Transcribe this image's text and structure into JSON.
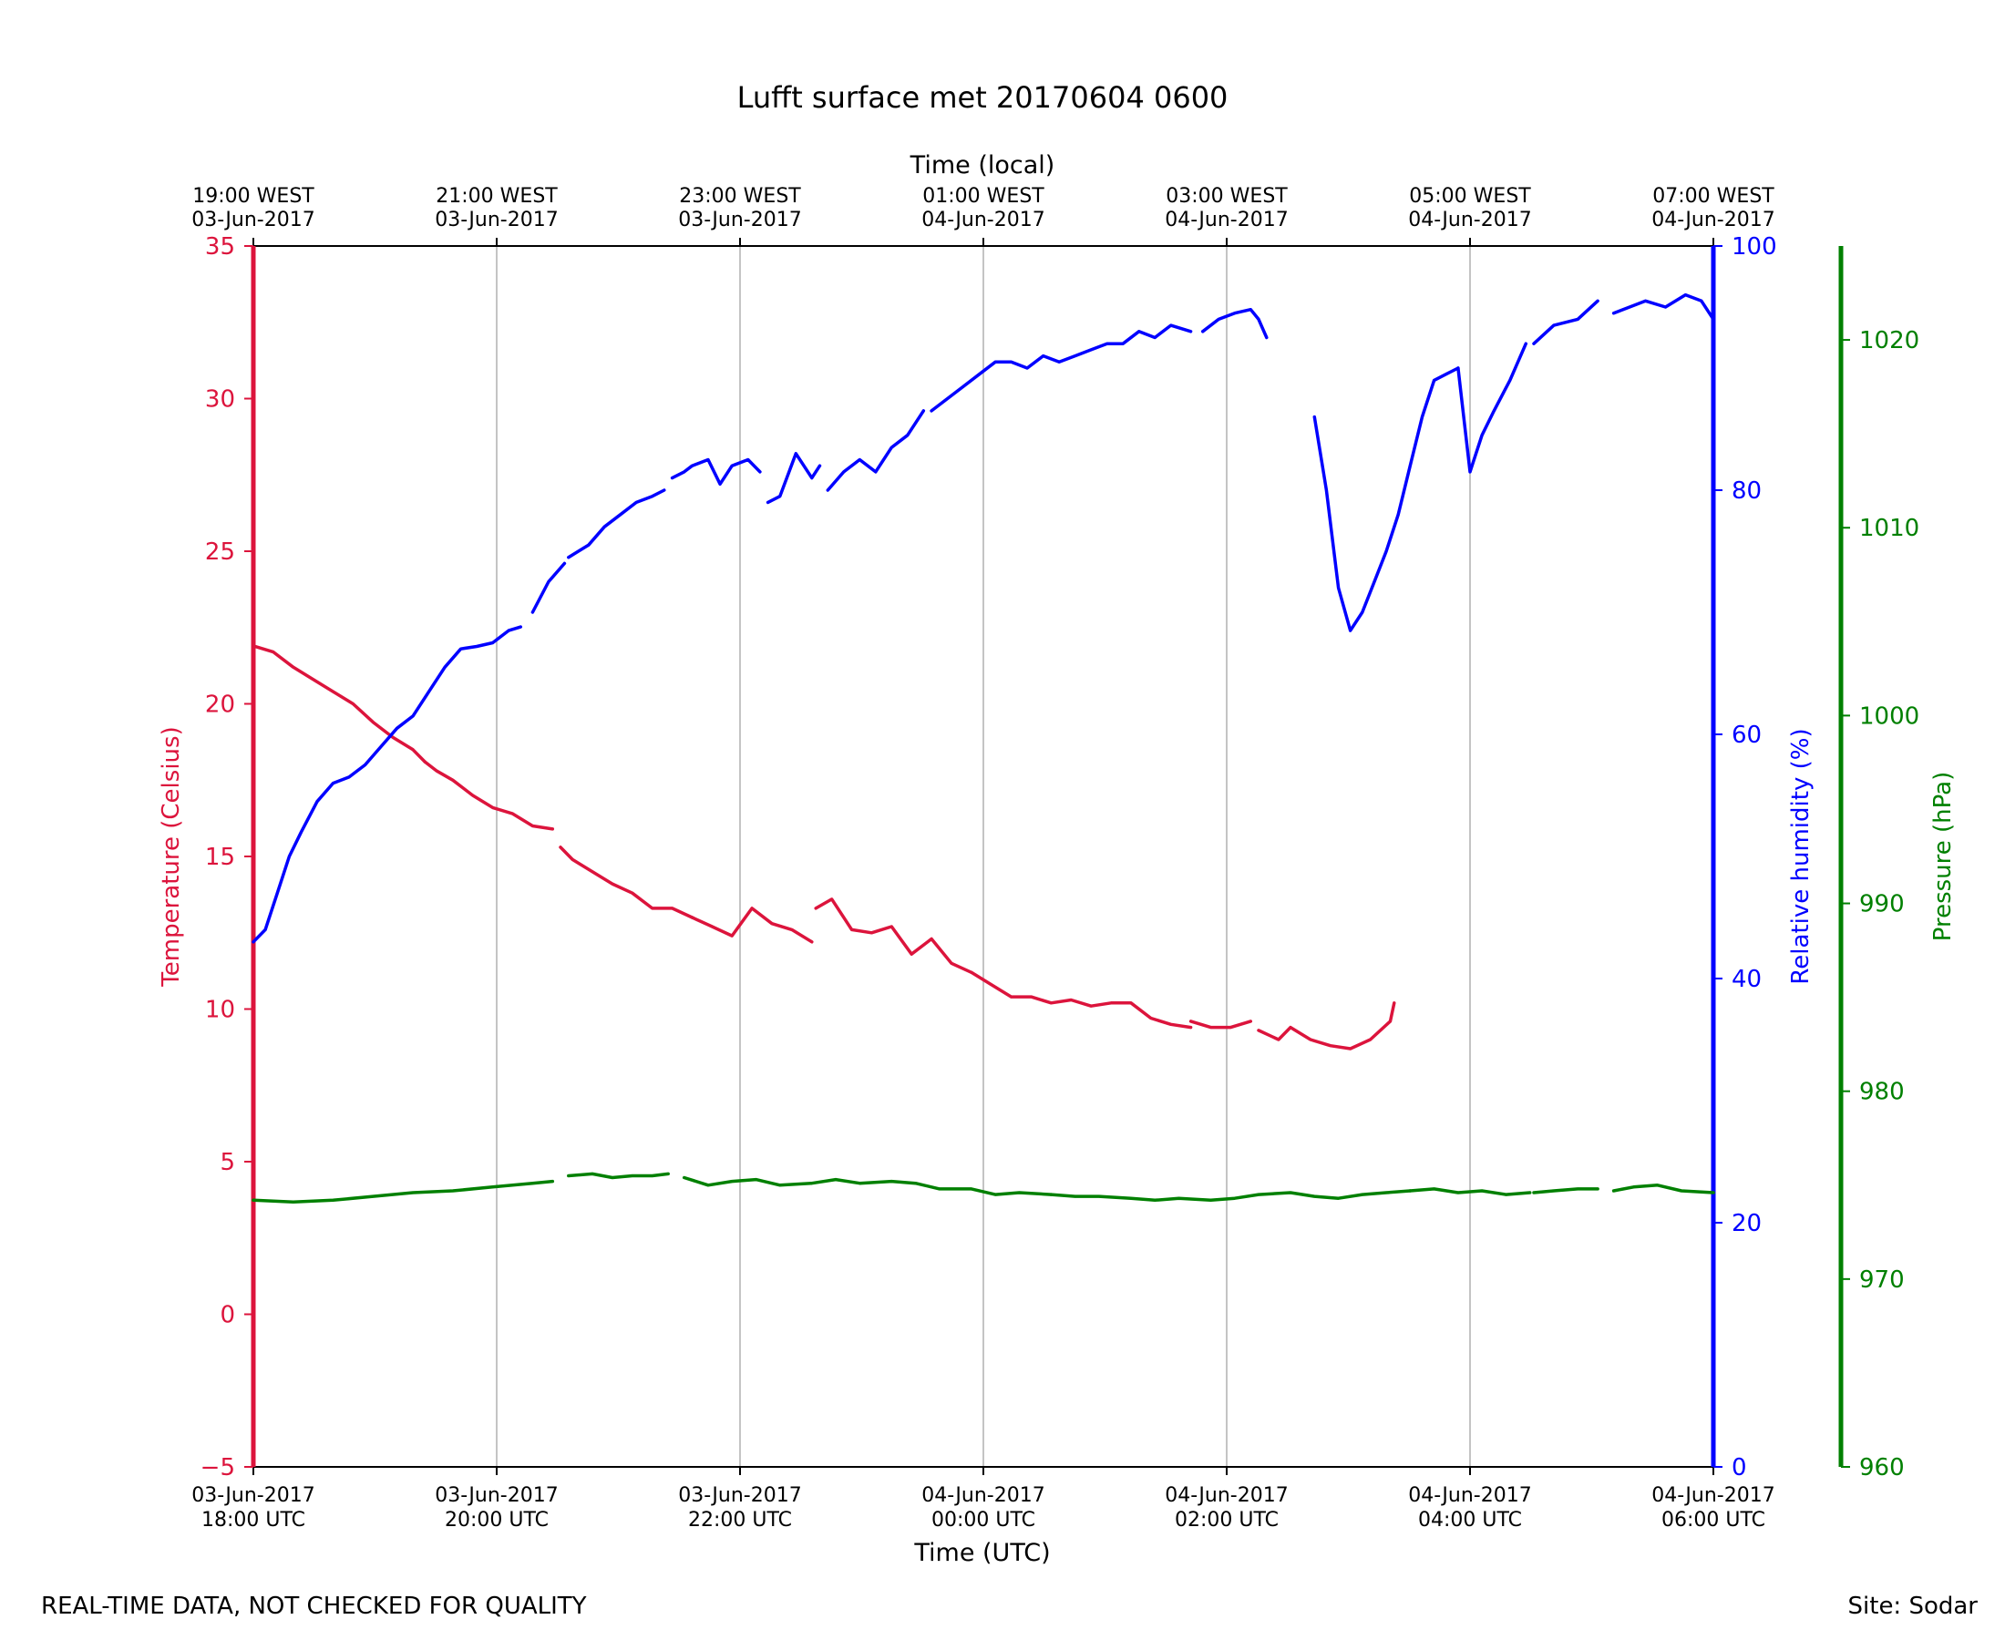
{
  "footer": {
    "disclaimer": "REAL-TIME DATA, NOT CHECKED FOR QUALITY",
    "site": "Site: Sodar"
  },
  "chart_data": {
    "type": "line",
    "title": "Lufft surface met 20170604 0600",
    "xlabel": "Time (UTC)",
    "x2label": "Time (local)",
    "ylabel": "Temperature (Celsius)",
    "y2label": "Relative humidity (%)",
    "y3label": "Pressure (hPa)",
    "xlim_hours": [
      0,
      12
    ],
    "ylim": [
      -5,
      35
    ],
    "y2lim": [
      0,
      100
    ],
    "y3lim": [
      960,
      1025
    ],
    "grid": "vertical",
    "colors": {
      "temperature": "#dc143c",
      "humidity": "#0000ff",
      "pressure": "#008000",
      "grid": "#b0b0b0"
    },
    "x_ticks_utc": [
      {
        "h": 0,
        "date": "03-Jun-2017",
        "time": "18:00 UTC"
      },
      {
        "h": 2,
        "date": "03-Jun-2017",
        "time": "20:00 UTC"
      },
      {
        "h": 4,
        "date": "03-Jun-2017",
        "time": "22:00 UTC"
      },
      {
        "h": 6,
        "date": "04-Jun-2017",
        "time": "00:00 UTC"
      },
      {
        "h": 8,
        "date": "04-Jun-2017",
        "time": "02:00 UTC"
      },
      {
        "h": 10,
        "date": "04-Jun-2017",
        "time": "04:00 UTC"
      },
      {
        "h": 12,
        "date": "04-Jun-2017",
        "time": "06:00 UTC"
      }
    ],
    "x_ticks_local": [
      {
        "h": 0,
        "time": "19:00 WEST",
        "date": "03-Jun-2017"
      },
      {
        "h": 2,
        "time": "21:00 WEST",
        "date": "03-Jun-2017"
      },
      {
        "h": 4,
        "time": "23:00 WEST",
        "date": "03-Jun-2017"
      },
      {
        "h": 6,
        "time": "01:00 WEST",
        "date": "04-Jun-2017"
      },
      {
        "h": 8,
        "time": "03:00 WEST",
        "date": "04-Jun-2017"
      },
      {
        "h": 10,
        "time": "05:00 WEST",
        "date": "04-Jun-2017"
      },
      {
        "h": 12,
        "time": "07:00 WEST",
        "date": "04-Jun-2017"
      }
    ],
    "y_ticks": [
      -5,
      0,
      5,
      10,
      15,
      20,
      25,
      30,
      35
    ],
    "y2_ticks": [
      0,
      20,
      40,
      60,
      80,
      100
    ],
    "y3_ticks": [
      960,
      970,
      980,
      990,
      1000,
      1010,
      1020
    ],
    "series": [
      {
        "name": "Temperature (Celsius)",
        "axis": "y",
        "segments": [
          [
            [
              0.0,
              21.9
            ],
            [
              0.25,
              21.7
            ],
            [
              0.5,
              21.2
            ],
            [
              0.75,
              20.8
            ],
            [
              1.0,
              20.4
            ],
            [
              1.25,
              20.0
            ],
            [
              1.5,
              19.4
            ],
            [
              1.75,
              18.9
            ],
            [
              2.0,
              18.5
            ],
            [
              2.15,
              18.1
            ]
          ],
          [
            [
              2.15,
              18.1
            ],
            [
              2.3,
              17.8
            ],
            [
              2.5,
              17.5
            ],
            [
              2.75,
              17.0
            ],
            [
              3.0,
              16.6
            ],
            [
              3.25,
              16.4
            ],
            [
              3.5,
              16.0
            ],
            [
              3.75,
              15.9
            ]
          ],
          [
            [
              3.85,
              15.3
            ],
            [
              4.0,
              14.9
            ],
            [
              4.25,
              14.5
            ],
            [
              4.5,
              14.1
            ],
            [
              4.75,
              13.8
            ],
            [
              5.0,
              13.3
            ],
            [
              5.25,
              13.3
            ],
            [
              5.5,
              13.0
            ]
          ],
          [
            [
              5.5,
              13.0
            ],
            [
              5.75,
              12.7
            ],
            [
              6.0,
              12.4
            ],
            [
              6.25,
              13.3
            ],
            [
              6.5,
              12.8
            ],
            [
              6.75,
              12.6
            ],
            [
              7.0,
              12.2
            ]
          ],
          [
            [
              7.05,
              13.3
            ],
            [
              7.25,
              13.6
            ],
            [
              7.5,
              12.6
            ],
            [
              7.75,
              12.5
            ],
            [
              8.0,
              12.7
            ],
            [
              8.25,
              11.8
            ],
            [
              8.5,
              12.3
            ],
            [
              8.75,
              11.5
            ],
            [
              9.0,
              11.2
            ]
          ],
          [
            [
              9.0,
              11.2
            ],
            [
              9.25,
              10.8
            ],
            [
              9.5,
              10.4
            ],
            [
              9.75,
              10.4
            ],
            [
              10.0,
              10.2
            ],
            [
              10.25,
              10.3
            ],
            [
              10.5,
              10.1
            ],
            [
              10.75,
              10.2
            ],
            [
              11.0,
              10.2
            ],
            [
              11.25,
              9.7
            ],
            [
              11.5,
              9.5
            ],
            [
              11.75,
              9.4
            ]
          ],
          [
            [
              11.75,
              9.6
            ],
            [
              12.0,
              9.4
            ],
            [
              12.25,
              9.4
            ],
            [
              12.5,
              9.6
            ]
          ],
          [
            [
              12.6,
              9.3
            ],
            [
              12.85,
              9.0
            ],
            [
              13.0,
              9.4
            ],
            [
              13.25,
              9.0
            ],
            [
              13.5,
              8.8
            ],
            [
              13.75,
              8.7
            ],
            [
              14.0,
              9.0
            ],
            [
              14.25,
              9.6
            ],
            [
              14.3,
              10.2
            ]
          ]
        ]
      },
      {
        "name": "Relative humidity (%)",
        "axis": "y2",
        "segments": [
          [
            [
              0.0,
              43.0
            ],
            [
              0.15,
              44.0
            ],
            [
              0.3,
              47.0
            ],
            [
              0.45,
              50.0
            ],
            [
              0.6,
              52.0
            ],
            [
              0.8,
              54.5
            ],
            [
              1.0,
              56.0
            ],
            [
              1.2,
              56.5
            ],
            [
              1.4,
              57.5
            ],
            [
              1.6,
              59.0
            ],
            [
              1.8,
              60.5
            ],
            [
              2.0,
              61.5
            ],
            [
              2.2,
              63.5
            ],
            [
              2.4,
              65.5
            ],
            [
              2.6,
              67.0
            ],
            [
              2.8,
              67.2
            ],
            [
              3.0,
              67.5
            ],
            [
              3.2,
              68.5
            ],
            [
              3.35,
              68.8
            ]
          ],
          [
            [
              3.5,
              70.0
            ],
            [
              3.7,
              72.5
            ],
            [
              3.9,
              74.0
            ]
          ],
          [
            [
              3.95,
              74.5
            ],
            [
              4.2,
              75.5
            ],
            [
              4.4,
              77.0
            ],
            [
              4.6,
              78.0
            ],
            [
              4.8,
              79.0
            ],
            [
              5.0,
              79.5
            ],
            [
              5.15,
              80.0
            ]
          ],
          [
            [
              5.25,
              81.0
            ],
            [
              5.4,
              81.5
            ],
            [
              5.5,
              82.0
            ],
            [
              5.7,
              82.5
            ],
            [
              5.85,
              80.5
            ],
            [
              6.0,
              82.0
            ],
            [
              6.2,
              82.5
            ],
            [
              6.35,
              81.5
            ]
          ],
          [
            [
              6.45,
              79.0
            ],
            [
              6.6,
              79.5
            ],
            [
              6.8,
              83.0
            ],
            [
              7.0,
              81.0
            ],
            [
              7.1,
              82.0
            ]
          ],
          [
            [
              7.2,
              80.0
            ],
            [
              7.4,
              81.5
            ],
            [
              7.6,
              82.5
            ],
            [
              7.8,
              81.5
            ],
            [
              8.0,
              83.5
            ],
            [
              8.2,
              84.5
            ],
            [
              8.4,
              86.5
            ]
          ],
          [
            [
              8.5,
              86.5
            ],
            [
              8.7,
              87.5
            ],
            [
              8.9,
              88.5
            ],
            [
              9.1,
              89.5
            ],
            [
              9.3,
              90.5
            ],
            [
              9.5,
              90.5
            ],
            [
              9.7,
              90.0
            ],
            [
              9.9,
              91.0
            ],
            [
              10.1,
              90.5
            ],
            [
              10.3,
              91.0
            ],
            [
              10.5,
              91.5
            ],
            [
              10.7,
              92.0
            ],
            [
              10.9,
              92.0
            ],
            [
              11.1,
              93.0
            ],
            [
              11.3,
              92.5
            ],
            [
              11.5,
              93.5
            ],
            [
              11.75,
              93.0
            ]
          ],
          [
            [
              11.9,
              93.0
            ],
            [
              12.1,
              94.0
            ],
            [
              12.3,
              94.5
            ],
            [
              12.5,
              94.8
            ],
            [
              12.6,
              94.0
            ],
            [
              12.7,
              92.5
            ]
          ],
          [
            [
              13.3,
              86.0
            ],
            [
              13.45,
              80.0
            ],
            [
              13.6,
              72.0
            ],
            [
              13.75,
              68.5
            ],
            [
              13.9,
              70.0
            ],
            [
              14.05,
              72.5
            ],
            [
              14.2,
              75.0
            ],
            [
              14.35,
              78.0
            ],
            [
              14.5,
              82.0
            ],
            [
              14.65,
              86.0
            ],
            [
              14.8,
              89.0
            ],
            [
              14.95,
              89.5
            ],
            [
              15.1,
              90.0
            ]
          ],
          [
            [
              15.1,
              90.0
            ],
            [
              15.25,
              81.5
            ],
            [
              15.4,
              84.5
            ],
            [
              15.55,
              86.5
            ],
            [
              15.75,
              89.0
            ],
            [
              15.95,
              92.0
            ]
          ],
          [
            [
              16.05,
              92.0
            ],
            [
              16.3,
              93.5
            ],
            [
              16.6,
              94.0
            ],
            [
              16.85,
              95.5
            ]
          ],
          [
            [
              17.05,
              94.5
            ],
            [
              17.25,
              95.0
            ],
            [
              17.45,
              95.5
            ],
            [
              17.7,
              95.0
            ],
            [
              17.95,
              96.0
            ],
            [
              18.15,
              95.5
            ],
            [
              18.3,
              94.0
            ]
          ]
        ]
      },
      {
        "name": "Pressure (hPa)",
        "axis": "y3",
        "segments": [
          [
            [
              0.0,
              974.2
            ],
            [
              0.5,
              974.1
            ],
            [
              1.0,
              974.2
            ],
            [
              1.5,
              974.4
            ],
            [
              2.0,
              974.6
            ],
            [
              2.5,
              974.7
            ],
            [
              3.0,
              974.9
            ],
            [
              3.5,
              975.1
            ],
            [
              3.75,
              975.2
            ]
          ],
          [
            [
              3.95,
              975.5
            ],
            [
              4.25,
              975.6
            ],
            [
              4.5,
              975.4
            ],
            [
              4.75,
              975.5
            ],
            [
              5.0,
              975.5
            ],
            [
              5.2,
              975.6
            ]
          ],
          [
            [
              5.4,
              975.4
            ],
            [
              5.7,
              975.0
            ],
            [
              6.0,
              975.2
            ],
            [
              6.3,
              975.3
            ],
            [
              6.6,
              975.0
            ],
            [
              7.0,
              975.1
            ],
            [
              7.3,
              975.3
            ],
            [
              7.6,
              975.1
            ],
            [
              8.0,
              975.2
            ],
            [
              8.3,
              975.1
            ],
            [
              8.6,
              974.8
            ],
            [
              9.0,
              974.8
            ],
            [
              9.3,
              974.5
            ],
            [
              9.6,
              974.6
            ],
            [
              10.0,
              974.5
            ]
          ],
          [
            [
              10.0,
              974.5
            ],
            [
              10.3,
              974.4
            ],
            [
              10.6,
              974.4
            ],
            [
              11.0,
              974.3
            ],
            [
              11.3,
              974.2
            ],
            [
              11.6,
              974.3
            ],
            [
              12.0,
              974.2
            ],
            [
              12.3,
              974.3
            ],
            [
              12.6,
              974.5
            ],
            [
              13.0,
              974.6
            ],
            [
              13.3,
              974.4
            ],
            [
              13.6,
              974.3
            ],
            [
              13.9,
              974.5
            ],
            [
              14.2,
              974.6
            ],
            [
              14.5,
              974.7
            ]
          ],
          [
            [
              14.5,
              974.7
            ],
            [
              14.8,
              974.8
            ],
            [
              15.1,
              974.6
            ],
            [
              15.4,
              974.7
            ],
            [
              15.7,
              974.5
            ],
            [
              16.0,
              974.6
            ]
          ],
          [
            [
              16.05,
              974.6
            ],
            [
              16.3,
              974.7
            ],
            [
              16.6,
              974.8
            ],
            [
              16.85,
              974.8
            ]
          ],
          [
            [
              17.05,
              974.7
            ],
            [
              17.3,
              974.9
            ],
            [
              17.6,
              975.0
            ],
            [
              17.9,
              974.7
            ],
            [
              18.3,
              974.6
            ]
          ]
        ]
      }
    ]
  }
}
